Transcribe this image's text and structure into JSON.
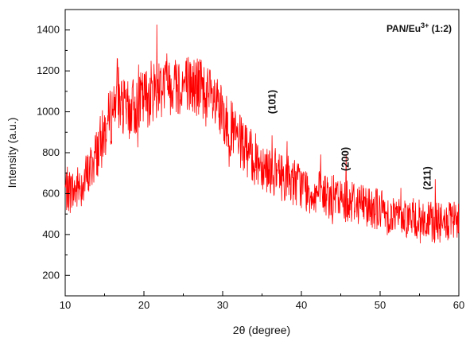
{
  "chart_data": {
    "type": "line",
    "xlabel": "2θ (degree)",
    "ylabel": "Intensity (a.u.)",
    "xlim": [
      10,
      60
    ],
    "ylim": [
      100,
      1500
    ],
    "x_ticks": [
      10,
      20,
      30,
      40,
      50,
      60
    ],
    "y_ticks": [
      200,
      400,
      600,
      800,
      1000,
      1200,
      1400
    ],
    "legend": {
      "base": "PAN/Eu",
      "superscript": "3+",
      "suffix": " (1:2)",
      "placement": "top-right"
    },
    "grid": false,
    "series": [
      {
        "color": "#ff0000",
        "x": [
          10,
          11,
          12,
          13,
          14,
          15,
          16,
          16.6,
          17,
          18,
          19,
          20,
          21,
          22,
          23,
          24,
          25,
          26,
          27,
          28,
          29,
          30,
          31,
          32,
          33,
          34,
          35,
          36,
          37,
          38,
          39,
          40,
          41,
          42,
          43,
          44,
          45,
          46,
          47,
          48,
          49,
          50,
          51,
          52,
          53,
          54,
          55,
          56,
          57,
          58,
          59,
          60
        ],
        "y": [
          620,
          610,
          640,
          700,
          800,
          900,
          1000,
          1130,
          1020,
          1000,
          1030,
          1060,
          1100,
          1130,
          1150,
          1140,
          1130,
          1130,
          1120,
          1080,
          1030,
          970,
          920,
          860,
          810,
          770,
          750,
          720,
          690,
          680,
          660,
          640,
          610,
          600,
          590,
          580,
          570,
          570,
          560,
          550,
          540,
          520,
          500,
          490,
          490,
          480,
          470,
          460,
          460,
          450,
          460,
          460
        ]
      }
    ],
    "annotations": [
      {
        "text": "(101)",
        "x": 37.0
      },
      {
        "text": "(200)",
        "x": 46.3
      },
      {
        "text": "(211)",
        "x": 56.7
      }
    ]
  }
}
